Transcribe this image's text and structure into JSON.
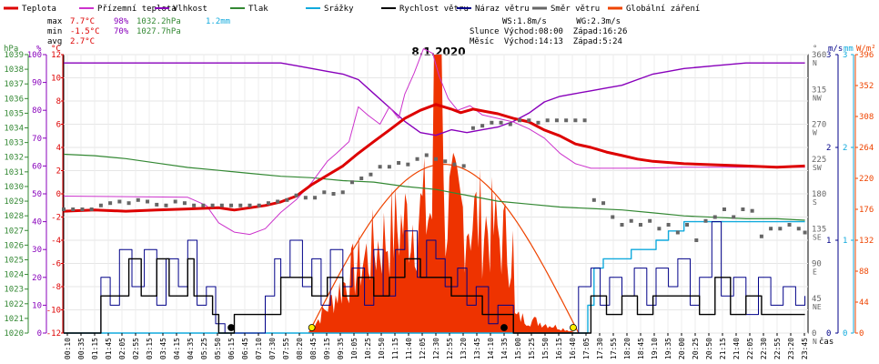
{
  "chart_data": {
    "type": "line",
    "title": "8.1.2020",
    "xlabel": "čas",
    "legend": [
      {
        "label": "Teplota",
        "color": "#dd0000"
      },
      {
        "label": "Přízemní teplota",
        "color": "#cc33cc"
      },
      {
        "label": "Vlhkost",
        "color": "#8800bb"
      },
      {
        "label": "Tlak",
        "color": "#338833"
      },
      {
        "label": "Srážky",
        "color": "#11aadd"
      },
      {
        "label": "Rychlost větru",
        "color": "#000000"
      },
      {
        "label": "Náraz větru",
        "color": "#000088"
      },
      {
        "label": "Směr větru",
        "color": "#666666"
      },
      {
        "label": "Globální záření",
        "color": "#ee4400"
      }
    ],
    "stats": {
      "max_label": "max",
      "max_temp": "7.7°C",
      "max_hum": "98%",
      "max_press": "1032.2hPa",
      "rain": "1.2mm",
      "min_label": "min",
      "min_temp": "-1.5°C",
      "min_hum": "70%",
      "min_press": "1027.7hPa",
      "avg_label": "avg",
      "avg_temp": "2.7°C"
    },
    "info": {
      "line1": "WS:1.8m/s      WG:2.3m/s",
      "line2": "Slunce Východ:08:00  Západ:16:26",
      "line3": "Měsíc  Východ:14:13  Západ:5:24"
    },
    "axes": {
      "hpa_label": "hPa",
      "pct_label": "%",
      "degc_label": "°C",
      "hpa_ticks": [
        "1039",
        "1038",
        "1037",
        "1036",
        "1035",
        "1034",
        "1033",
        "1032",
        "1031",
        "1030",
        "1029",
        "1028",
        "1027",
        "1026",
        "1025",
        "1024",
        "1023",
        "1022",
        "1021",
        "1020"
      ],
      "pct_ticks": [
        "100",
        "90",
        "80",
        "70",
        "60",
        "50",
        "40",
        "30",
        "20",
        "10",
        "0"
      ],
      "temp_ticks": [
        "12",
        "10",
        "8",
        "6",
        "4",
        "2",
        "0",
        "-2",
        "-4",
        "-6",
        "-8",
        "-10",
        "-12"
      ],
      "deg_label": "°",
      "dir_ticks": [
        "360",
        "315",
        "270",
        "225",
        "180",
        "135",
        "90",
        "45",
        "0"
      ],
      "dir_names": [
        "N",
        "NW",
        "W",
        "SW",
        "S",
        "SE",
        "E",
        "NE",
        "N"
      ],
      "ms_label": "m/s",
      "ms_ticks": [
        "3",
        "2",
        "1",
        "0"
      ],
      "mm_label": "mm",
      "mm_ticks": [
        "3",
        "2",
        "1",
        "0"
      ],
      "wm_label": "W/m²",
      "wm_ticks": [
        "396",
        "352",
        "308",
        "264",
        "220",
        "176",
        "132",
        "88",
        "44",
        "0"
      ],
      "time_ticks": [
        "00:10",
        "00:35",
        "01:15",
        "01:45",
        "02:05",
        "02:55",
        "03:15",
        "03:45",
        "04:15",
        "04:35",
        "05:25",
        "05:50",
        "06:15",
        "06:45",
        "07:10",
        "07:30",
        "07:55",
        "08:20",
        "08:45",
        "09:15",
        "09:35",
        "10:05",
        "10:25",
        "10:50",
        "11:15",
        "11:40",
        "12:05",
        "12:30",
        "12:55",
        "13:20",
        "13:45",
        "14:10",
        "14:35",
        "15:00",
        "15:25",
        "15:50",
        "16:15",
        "16:40",
        "17:05",
        "17:30",
        "17:55",
        "18:20",
        "18:45",
        "19:10",
        "19:35",
        "20:00",
        "20:25",
        "20:50",
        "21:15",
        "21:40",
        "22:05",
        "22:30",
        "22:55",
        "23:20",
        "23:45"
      ]
    },
    "ylim_temp": [
      -12,
      12
    ],
    "ylim_pct": [
      0,
      100
    ],
    "ylim_hpa": [
      1020,
      1039
    ],
    "ylim_wm": [
      0,
      396
    ],
    "temperature": [
      [
        0,
        -1.5
      ],
      [
        1,
        -1.4
      ],
      [
        2,
        -1.5
      ],
      [
        3,
        -1.4
      ],
      [
        4,
        -1.3
      ],
      [
        5,
        -1.2
      ],
      [
        5.5,
        -1.4
      ],
      [
        6,
        -1.2
      ],
      [
        6.5,
        -1.0
      ],
      [
        7,
        -0.7
      ],
      [
        7.5,
        -0.2
      ],
      [
        8,
        0.8
      ],
      [
        8.5,
        1.6
      ],
      [
        9,
        2.4
      ],
      [
        9.5,
        3.5
      ],
      [
        10,
        4.5
      ],
      [
        10.5,
        5.5
      ],
      [
        11,
        6.5
      ],
      [
        11.5,
        7.2
      ],
      [
        12,
        7.7
      ],
      [
        12.5,
        7.3
      ],
      [
        12.8,
        7.0
      ],
      [
        13.2,
        7.3
      ],
      [
        13.6,
        7.1
      ],
      [
        14,
        6.9
      ],
      [
        14.5,
        6.5
      ],
      [
        15,
        6.2
      ],
      [
        15.5,
        5.5
      ],
      [
        16,
        5.0
      ],
      [
        16.5,
        4.3
      ],
      [
        17,
        4.0
      ],
      [
        17.5,
        3.6
      ],
      [
        18,
        3.3
      ],
      [
        18.5,
        3.0
      ],
      [
        19,
        2.8
      ],
      [
        20,
        2.6
      ],
      [
        21,
        2.5
      ],
      [
        22,
        2.4
      ],
      [
        23,
        2.3
      ],
      [
        23.9,
        2.4
      ]
    ],
    "ground_temp": [
      [
        0,
        -0.2
      ],
      [
        4,
        -0.3
      ],
      [
        4.6,
        -1.0
      ],
      [
        5,
        -2.5
      ],
      [
        5.5,
        -3.3
      ],
      [
        6,
        -3.5
      ],
      [
        6.5,
        -3.0
      ],
      [
        7,
        -1.6
      ],
      [
        7.5,
        -0.5
      ],
      [
        8,
        1.0
      ],
      [
        8.5,
        2.8
      ],
      [
        8.8,
        3.5
      ],
      [
        9.2,
        4.5
      ],
      [
        9.5,
        7.5
      ],
      [
        9.8,
        6.8
      ],
      [
        10.2,
        6.0
      ],
      [
        10.5,
        7.5
      ],
      [
        10.8,
        6.5
      ],
      [
        11,
        8.6
      ],
      [
        11.3,
        10.4
      ],
      [
        11.6,
        12.5
      ],
      [
        11.9,
        12.1
      ],
      [
        12.1,
        10.2
      ],
      [
        12.4,
        8.2
      ],
      [
        12.7,
        7.2
      ],
      [
        13.1,
        7.6
      ],
      [
        13.5,
        6.8
      ],
      [
        14,
        6.5
      ],
      [
        14.5,
        6.2
      ],
      [
        15,
        5.6
      ],
      [
        15.5,
        4.8
      ],
      [
        16,
        3.5
      ],
      [
        16.5,
        2.6
      ],
      [
        17,
        2.2
      ],
      [
        17.5,
        2.2
      ],
      [
        18.5,
        2.2
      ],
      [
        20,
        2.3
      ],
      [
        22,
        2.3
      ],
      [
        23.9,
        2.3
      ]
    ],
    "humidity": [
      [
        0,
        97
      ],
      [
        5,
        97
      ],
      [
        6,
        97
      ],
      [
        7,
        97
      ],
      [
        7.5,
        96
      ],
      [
        8,
        95
      ],
      [
        8.5,
        94
      ],
      [
        9,
        93
      ],
      [
        9.5,
        91
      ],
      [
        10,
        86
      ],
      [
        10.5,
        81
      ],
      [
        11,
        76
      ],
      [
        11.5,
        72
      ],
      [
        12,
        71
      ],
      [
        12.5,
        73
      ],
      [
        13,
        72
      ],
      [
        13.5,
        73
      ],
      [
        14,
        74
      ],
      [
        14.5,
        76
      ],
      [
        15,
        79
      ],
      [
        15.5,
        83
      ],
      [
        16,
        85
      ],
      [
        16.5,
        86
      ],
      [
        17,
        87
      ],
      [
        17.5,
        88
      ],
      [
        18,
        89
      ],
      [
        18.5,
        91
      ],
      [
        19,
        93
      ],
      [
        19.5,
        94
      ],
      [
        20,
        95
      ],
      [
        21,
        96
      ],
      [
        22,
        97
      ],
      [
        23,
        97
      ],
      [
        23.9,
        97
      ]
    ],
    "pressure": [
      [
        0,
        1032.2
      ],
      [
        1,
        1032.1
      ],
      [
        2,
        1031.9
      ],
      [
        3,
        1031.6
      ],
      [
        4,
        1031.3
      ],
      [
        5,
        1031.1
      ],
      [
        6,
        1030.9
      ],
      [
        7,
        1030.7
      ],
      [
        8,
        1030.6
      ],
      [
        9,
        1030.4
      ],
      [
        10,
        1030.3
      ],
      [
        11,
        1030.0
      ],
      [
        12,
        1029.8
      ],
      [
        13,
        1029.4
      ],
      [
        14,
        1029.0
      ],
      [
        15,
        1028.8
      ],
      [
        16,
        1028.6
      ],
      [
        17,
        1028.5
      ],
      [
        18,
        1028.4
      ],
      [
        19,
        1028.2
      ],
      [
        20,
        1028.0
      ],
      [
        21,
        1027.9
      ],
      [
        22,
        1027.8
      ],
      [
        23,
        1027.8
      ],
      [
        23.9,
        1027.7
      ]
    ],
    "rain": [
      [
        0,
        0
      ],
      [
        16.6,
        0
      ],
      [
        16.9,
        0.3
      ],
      [
        17.1,
        0.7
      ],
      [
        17.4,
        0.8
      ],
      [
        17.8,
        0.8
      ],
      [
        18.3,
        0.9
      ],
      [
        18.8,
        0.9
      ],
      [
        19.1,
        1.0
      ],
      [
        19.5,
        1.1
      ],
      [
        20,
        1.2
      ],
      [
        23.9,
        1.2
      ]
    ],
    "wind_speed": [
      [
        0,
        0
      ],
      [
        1,
        0
      ],
      [
        1.2,
        0.4
      ],
      [
        1.8,
        0.4
      ],
      [
        2.1,
        0.8
      ],
      [
        2.5,
        0.4
      ],
      [
        3,
        0.8
      ],
      [
        3.4,
        0.4
      ],
      [
        4,
        0.8
      ],
      [
        4.2,
        0.4
      ],
      [
        4.8,
        0.2
      ],
      [
        5,
        0
      ],
      [
        5.5,
        0.2
      ],
      [
        6,
        0.2
      ],
      [
        6.5,
        0.2
      ],
      [
        7,
        0.6
      ],
      [
        7.4,
        0.6
      ],
      [
        8,
        0.4
      ],
      [
        8.5,
        0.6
      ],
      [
        9,
        0.4
      ],
      [
        9.5,
        0.6
      ],
      [
        10,
        0.4
      ],
      [
        10.5,
        0.6
      ],
      [
        11,
        0.8
      ],
      [
        11.5,
        0.6
      ],
      [
        12,
        0.6
      ],
      [
        12.5,
        0.4
      ],
      [
        13,
        0.4
      ],
      [
        13.5,
        0.2
      ],
      [
        14,
        0.2
      ],
      [
        14.5,
        0
      ],
      [
        16.5,
        0
      ],
      [
        17,
        0.4
      ],
      [
        17.5,
        0.2
      ],
      [
        18,
        0.4
      ],
      [
        18.5,
        0.2
      ],
      [
        19,
        0.4
      ],
      [
        19.5,
        0.4
      ],
      [
        20,
        0.4
      ],
      [
        20.5,
        0.2
      ],
      [
        21,
        0.6
      ],
      [
        21.5,
        0.2
      ],
      [
        22,
        0.4
      ],
      [
        22.5,
        0.2
      ],
      [
        23,
        0.2
      ],
      [
        23.9,
        0.2
      ]
    ],
    "wind_gust": [
      [
        0,
        0
      ],
      [
        1,
        0
      ],
      [
        1.2,
        0.6
      ],
      [
        1.5,
        0.3
      ],
      [
        1.8,
        0.9
      ],
      [
        2.2,
        0.5
      ],
      [
        2.6,
        0.9
      ],
      [
        3,
        0.3
      ],
      [
        3.3,
        0.8
      ],
      [
        3.7,
        0.5
      ],
      [
        4,
        1.0
      ],
      [
        4.3,
        0.3
      ],
      [
        4.6,
        0.5
      ],
      [
        4.9,
        0.1
      ],
      [
        5.2,
        0
      ],
      [
        6.2,
        0
      ],
      [
        6.5,
        0.4
      ],
      [
        6.8,
        0.8
      ],
      [
        7,
        0.6
      ],
      [
        7.3,
        1.0
      ],
      [
        7.7,
        0.5
      ],
      [
        8,
        0.8
      ],
      [
        8.3,
        0.3
      ],
      [
        8.6,
        0.9
      ],
      [
        9,
        0.5
      ],
      [
        9.3,
        0.7
      ],
      [
        9.7,
        0.3
      ],
      [
        10,
        0.9
      ],
      [
        10.3,
        0.4
      ],
      [
        10.7,
        0.9
      ],
      [
        11,
        1.1
      ],
      [
        11.4,
        0.6
      ],
      [
        11.7,
        1.0
      ],
      [
        12,
        0.8
      ],
      [
        12.3,
        0.5
      ],
      [
        12.7,
        0.7
      ],
      [
        13,
        0.3
      ],
      [
        13.3,
        0.5
      ],
      [
        13.7,
        0.1
      ],
      [
        14,
        0.3
      ],
      [
        14.5,
        0
      ],
      [
        16.3,
        0
      ],
      [
        16.6,
        0.5
      ],
      [
        17,
        0.7
      ],
      [
        17.3,
        0.3
      ],
      [
        17.6,
        0.6
      ],
      [
        18,
        0.4
      ],
      [
        18.4,
        0.7
      ],
      [
        18.8,
        0.3
      ],
      [
        19.1,
        0.7
      ],
      [
        19.5,
        0.5
      ],
      [
        19.8,
        0.8
      ],
      [
        20.2,
        0.3
      ],
      [
        20.5,
        0.6
      ],
      [
        20.9,
        1.2
      ],
      [
        21.2,
        0.4
      ],
      [
        21.6,
        0.6
      ],
      [
        22,
        0.2
      ],
      [
        22.4,
        0.6
      ],
      [
        22.8,
        0.3
      ],
      [
        23.2,
        0.5
      ],
      [
        23.6,
        0.3
      ],
      [
        23.9,
        0.4
      ]
    ],
    "wind_dir": [
      [
        0,
        160
      ],
      [
        0.3,
        160
      ],
      [
        0.6,
        160
      ],
      [
        0.9,
        160
      ],
      [
        1.2,
        165
      ],
      [
        1.5,
        168
      ],
      [
        1.8,
        170
      ],
      [
        2.1,
        168
      ],
      [
        2.4,
        172
      ],
      [
        2.7,
        170
      ],
      [
        3.0,
        166
      ],
      [
        3.3,
        165
      ],
      [
        3.6,
        170
      ],
      [
        3.9,
        168
      ],
      [
        4.2,
        165
      ],
      [
        4.5,
        165
      ],
      [
        4.8,
        165
      ],
      [
        5.1,
        165
      ],
      [
        5.4,
        165
      ],
      [
        5.7,
        165
      ],
      [
        6.0,
        165
      ],
      [
        6.3,
        165
      ],
      [
        6.6,
        168
      ],
      [
        6.9,
        170
      ],
      [
        7.2,
        172
      ],
      [
        7.5,
        178
      ],
      [
        7.8,
        175
      ],
      [
        8.1,
        175
      ],
      [
        8.4,
        182
      ],
      [
        8.7,
        180
      ],
      [
        9.0,
        182
      ],
      [
        9.3,
        195
      ],
      [
        9.6,
        200
      ],
      [
        9.9,
        205
      ],
      [
        10.2,
        215
      ],
      [
        10.5,
        215
      ],
      [
        10.8,
        220
      ],
      [
        11.1,
        218
      ],
      [
        11.4,
        225
      ],
      [
        11.7,
        230
      ],
      [
        12.0,
        225
      ],
      [
        12.3,
        222
      ],
      [
        12.6,
        218
      ],
      [
        12.9,
        216
      ],
      [
        13.2,
        265
      ],
      [
        13.5,
        268
      ],
      [
        13.8,
        272
      ],
      [
        14.1,
        272
      ],
      [
        14.4,
        270
      ],
      [
        14.7,
        275
      ],
      [
        15.0,
        275
      ],
      [
        15.3,
        272
      ],
      [
        15.6,
        275
      ],
      [
        15.9,
        275
      ],
      [
        16.2,
        275
      ],
      [
        16.5,
        275
      ],
      [
        16.8,
        275
      ],
      [
        17.1,
        172
      ],
      [
        17.4,
        168
      ],
      [
        17.7,
        150
      ],
      [
        18.0,
        140
      ],
      [
        18.3,
        145
      ],
      [
        18.6,
        140
      ],
      [
        18.9,
        145
      ],
      [
        19.2,
        135
      ],
      [
        19.5,
        140
      ],
      [
        19.8,
        130
      ],
      [
        20.1,
        140
      ],
      [
        20.4,
        120
      ],
      [
        20.7,
        145
      ],
      [
        21.0,
        150
      ],
      [
        21.3,
        160
      ],
      [
        21.6,
        150
      ],
      [
        21.9,
        160
      ],
      [
        22.2,
        158
      ],
      [
        22.5,
        125
      ],
      [
        22.8,
        135
      ],
      [
        23.1,
        135
      ],
      [
        23.4,
        140
      ],
      [
        23.7,
        135
      ],
      [
        23.9,
        130
      ]
    ],
    "solar_peak": 396,
    "solar_clear_peak": 240,
    "solar_start": 7.9,
    "solar_end": 16.6,
    "markers": [
      {
        "t": 5.4,
        "kind": "moonset",
        "color": "#000000"
      },
      {
        "t": 8.0,
        "kind": "sunrise",
        "color": "#ffee00"
      },
      {
        "t": 14.2,
        "kind": "moonrise",
        "color": "#000000"
      },
      {
        "t": 16.43,
        "kind": "sunset",
        "color": "#ffee00"
      }
    ]
  }
}
